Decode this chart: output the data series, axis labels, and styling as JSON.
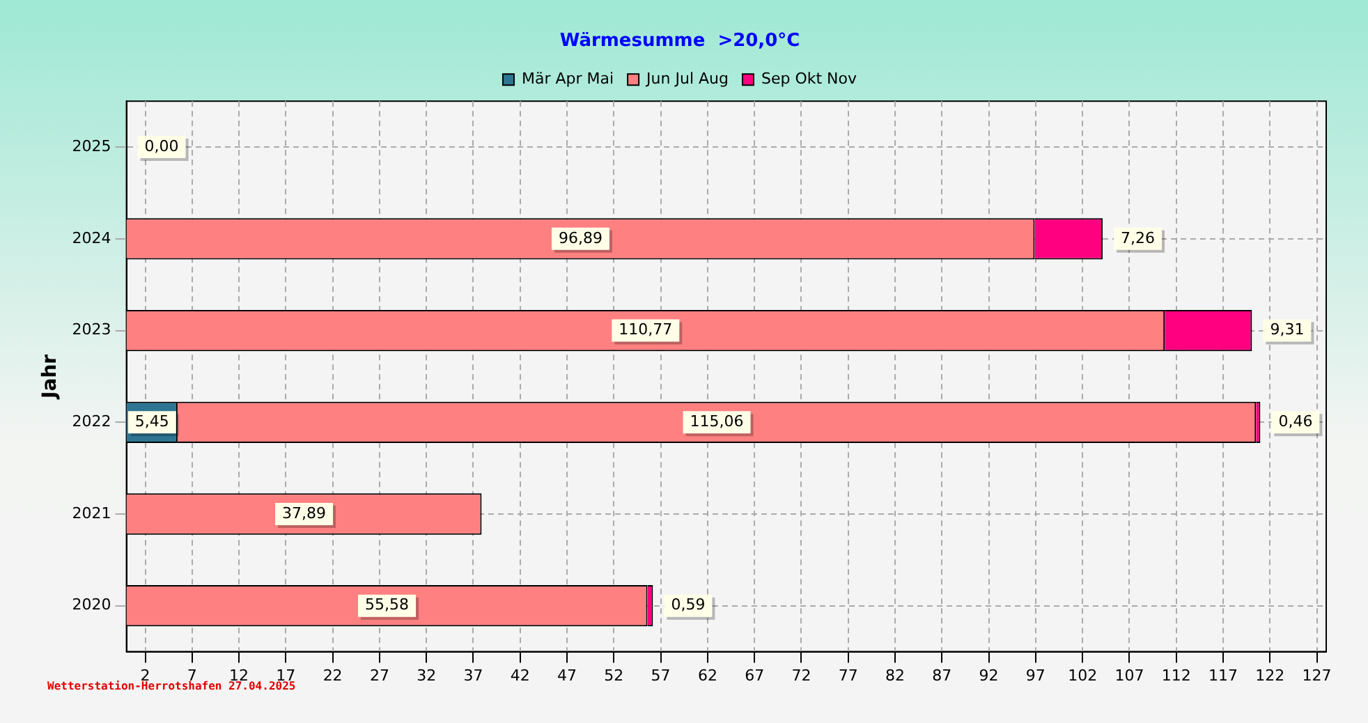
{
  "chart_data": {
    "type": "bar",
    "orientation": "horizontal",
    "stacked": true,
    "title": "Wärmesumme  >20,0°C",
    "ylabel": "Jahr",
    "categories": [
      "2025",
      "2024",
      "2023",
      "2022",
      "2021",
      "2020"
    ],
    "series": [
      {
        "name": "Mär Apr Mai",
        "color": "#2e7592",
        "values": [
          0,
          null,
          null,
          5.45,
          null,
          null
        ],
        "value_labels": [
          "0,00",
          null,
          null,
          "5,45",
          null,
          null
        ]
      },
      {
        "name": "Jun Jul Aug",
        "color": "#ff8080",
        "values": [
          null,
          96.89,
          110.77,
          115.06,
          37.89,
          55.58
        ],
        "value_labels": [
          null,
          "96,89",
          "110,77",
          "115,06",
          "37,89",
          "55,58"
        ]
      },
      {
        "name": "Sep Okt Nov",
        "color": "#ff0080",
        "values": [
          null,
          7.26,
          9.31,
          0.46,
          null,
          0.59
        ],
        "value_labels": [
          null,
          "7,26",
          "9,31",
          "0,46",
          null,
          "0,59"
        ]
      }
    ],
    "xlim": [
      0,
      128
    ],
    "xticks": [
      2,
      7,
      12,
      17,
      22,
      27,
      32,
      37,
      42,
      47,
      52,
      57,
      62,
      67,
      72,
      77,
      82,
      87,
      92,
      97,
      102,
      107,
      112,
      117,
      122,
      127
    ],
    "grid": true,
    "legend": "top",
    "annotations": [
      "Wetterstation-Herrotshafen 27.04.2025"
    ]
  }
}
